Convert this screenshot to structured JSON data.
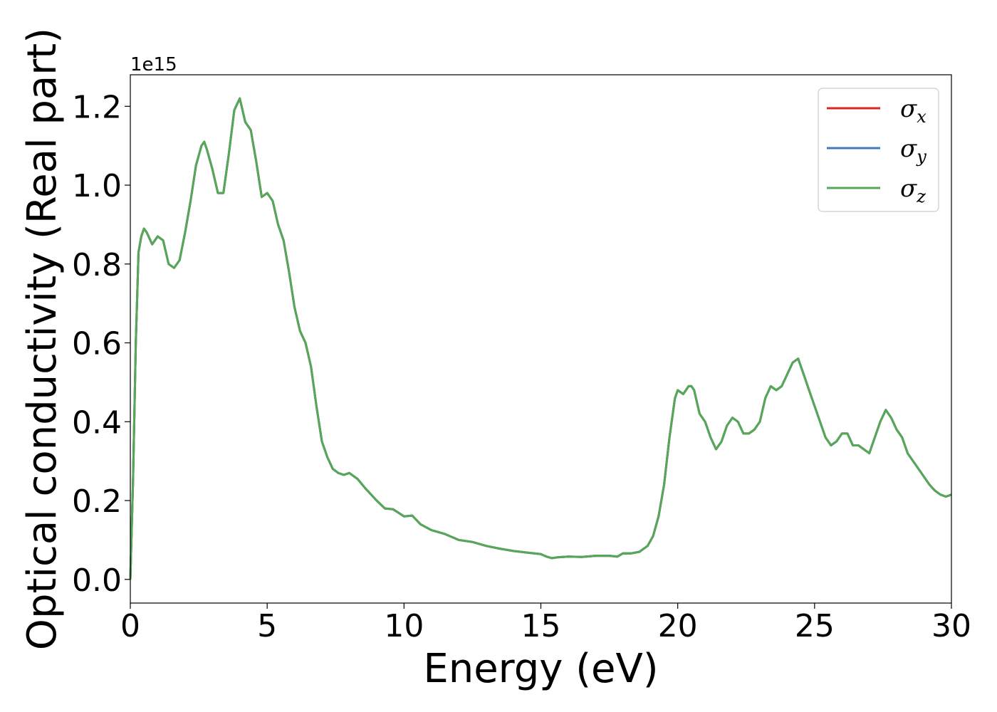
{
  "chart_data": {
    "type": "line",
    "xlabel": "Energy (eV)",
    "ylabel": "Optical conductivity (Real part)",
    "y_offset_text": "1e15",
    "xlim": [
      0,
      30
    ],
    "ylim": [
      -0.06,
      1.28
    ],
    "x_ticks": [
      0,
      5,
      10,
      15,
      20,
      25,
      30
    ],
    "y_ticks": [
      0.0,
      0.2,
      0.4,
      0.6,
      0.8,
      1.0,
      1.2
    ],
    "x_tick_labels": [
      "0",
      "5",
      "10",
      "15",
      "20",
      "25",
      "30"
    ],
    "y_tick_labels": [
      "0.0",
      "0.2",
      "0.4",
      "0.6",
      "0.8",
      "1.0",
      "1.2"
    ],
    "grid": false,
    "legend_position": "top-right",
    "series": [
      {
        "name": "σx",
        "symbol": "σ",
        "subscript": "x",
        "color": "#d62728"
      },
      {
        "name": "σy",
        "symbol": "σ",
        "subscript": "y",
        "color": "#3a7dbf"
      },
      {
        "name": "σz",
        "symbol": "σ",
        "subscript": "z",
        "color": "#55a855"
      }
    ],
    "shared_curve": {
      "x": [
        0,
        0.1,
        0.2,
        0.3,
        0.4,
        0.5,
        0.6,
        0.8,
        1.0,
        1.2,
        1.4,
        1.6,
        1.8,
        2.0,
        2.2,
        2.4,
        2.6,
        2.7,
        2.8,
        3.0,
        3.2,
        3.4,
        3.6,
        3.8,
        4.0,
        4.2,
        4.4,
        4.6,
        4.8,
        5.0,
        5.2,
        5.4,
        5.6,
        5.8,
        6.0,
        6.2,
        6.4,
        6.6,
        6.8,
        7.0,
        7.2,
        7.4,
        7.6,
        7.8,
        8.0,
        8.3,
        8.6,
        9.0,
        9.3,
        9.6,
        10.0,
        10.3,
        10.6,
        11.0,
        11.5,
        12.0,
        12.5,
        13.0,
        13.5,
        14.0,
        14.5,
        15.0,
        15.2,
        15.4,
        15.6,
        16.0,
        16.5,
        17.0,
        17.5,
        17.8,
        18.0,
        18.3,
        18.6,
        18.9,
        19.1,
        19.3,
        19.5,
        19.7,
        19.9,
        20.0,
        20.2,
        20.4,
        20.5,
        20.6,
        20.8,
        21.0,
        21.2,
        21.4,
        21.6,
        21.8,
        22.0,
        22.2,
        22.4,
        22.6,
        22.8,
        23.0,
        23.2,
        23.4,
        23.6,
        23.8,
        24.0,
        24.2,
        24.4,
        24.6,
        24.8,
        25.0,
        25.2,
        25.4,
        25.6,
        25.8,
        26.0,
        26.2,
        26.4,
        26.6,
        26.8,
        27.0,
        27.2,
        27.4,
        27.6,
        27.8,
        28.0,
        28.2,
        28.4,
        28.6,
        28.8,
        29.0,
        29.2,
        29.4,
        29.6,
        29.8,
        30.0
      ],
      "y": [
        0.0,
        0.25,
        0.6,
        0.83,
        0.87,
        0.89,
        0.88,
        0.85,
        0.87,
        0.86,
        0.8,
        0.79,
        0.81,
        0.88,
        0.96,
        1.05,
        1.1,
        1.11,
        1.09,
        1.04,
        0.98,
        0.98,
        1.08,
        1.19,
        1.22,
        1.16,
        1.14,
        1.06,
        0.97,
        0.98,
        0.96,
        0.9,
        0.86,
        0.78,
        0.69,
        0.63,
        0.6,
        0.54,
        0.44,
        0.35,
        0.31,
        0.28,
        0.27,
        0.265,
        0.27,
        0.255,
        0.23,
        0.2,
        0.18,
        0.178,
        0.16,
        0.162,
        0.14,
        0.125,
        0.115,
        0.1,
        0.095,
        0.085,
        0.078,
        0.072,
        0.068,
        0.064,
        0.058,
        0.054,
        0.056,
        0.058,
        0.057,
        0.06,
        0.06,
        0.058,
        0.066,
        0.066,
        0.07,
        0.085,
        0.11,
        0.16,
        0.24,
        0.36,
        0.46,
        0.48,
        0.47,
        0.49,
        0.49,
        0.48,
        0.42,
        0.4,
        0.36,
        0.33,
        0.35,
        0.39,
        0.41,
        0.4,
        0.37,
        0.37,
        0.38,
        0.4,
        0.46,
        0.49,
        0.48,
        0.49,
        0.52,
        0.55,
        0.56,
        0.52,
        0.48,
        0.44,
        0.4,
        0.36,
        0.34,
        0.35,
        0.37,
        0.37,
        0.34,
        0.34,
        0.33,
        0.32,
        0.36,
        0.4,
        0.43,
        0.41,
        0.38,
        0.36,
        0.32,
        0.3,
        0.28,
        0.26,
        0.24,
        0.225,
        0.215,
        0.21,
        0.215
      ]
    }
  }
}
